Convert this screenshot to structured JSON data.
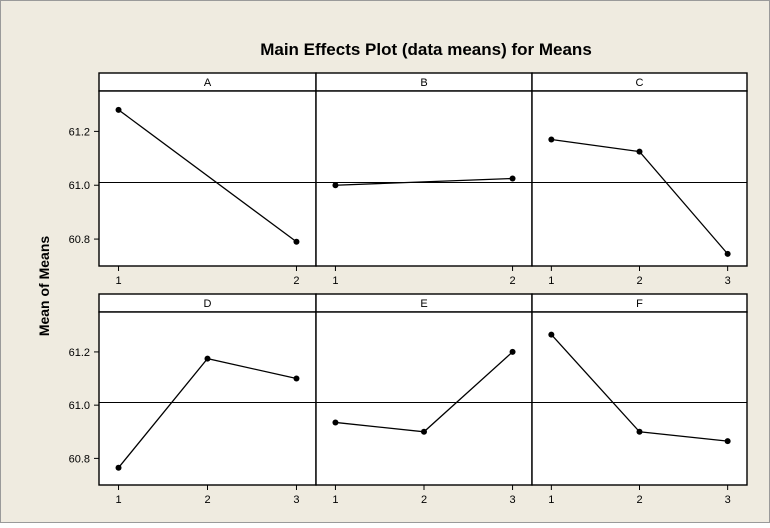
{
  "colors": {
    "background": "#efebe0",
    "panel": "#ffffff",
    "strip": "#ffffff",
    "line": "#000000",
    "reference_line": "#000000"
  },
  "chart_data": {
    "type": "line",
    "title": "Main Effects Plot (data means) for Means",
    "ylabel": "Mean of Means",
    "ylim": [
      60.7,
      61.35
    ],
    "yticks": [
      "60.8",
      "61.0",
      "61.2"
    ],
    "reference_mean": 61.01,
    "grid": false,
    "legend": "none",
    "panels": [
      {
        "name": "A",
        "x": [
          "1",
          "2"
        ],
        "values": [
          61.28,
          60.79
        ]
      },
      {
        "name": "B",
        "x": [
          "1",
          "2"
        ],
        "values": [
          61.0,
          61.025
        ]
      },
      {
        "name": "C",
        "x": [
          "1",
          "2",
          "3"
        ],
        "values": [
          61.17,
          61.125,
          60.745
        ]
      },
      {
        "name": "D",
        "x": [
          "1",
          "2",
          "3"
        ],
        "values": [
          60.765,
          61.175,
          61.1
        ]
      },
      {
        "name": "E",
        "x": [
          "1",
          "2",
          "3"
        ],
        "values": [
          60.935,
          60.9,
          61.2
        ]
      },
      {
        "name": "F",
        "x": [
          "1",
          "2",
          "3"
        ],
        "values": [
          61.265,
          60.9,
          60.865
        ]
      }
    ]
  }
}
